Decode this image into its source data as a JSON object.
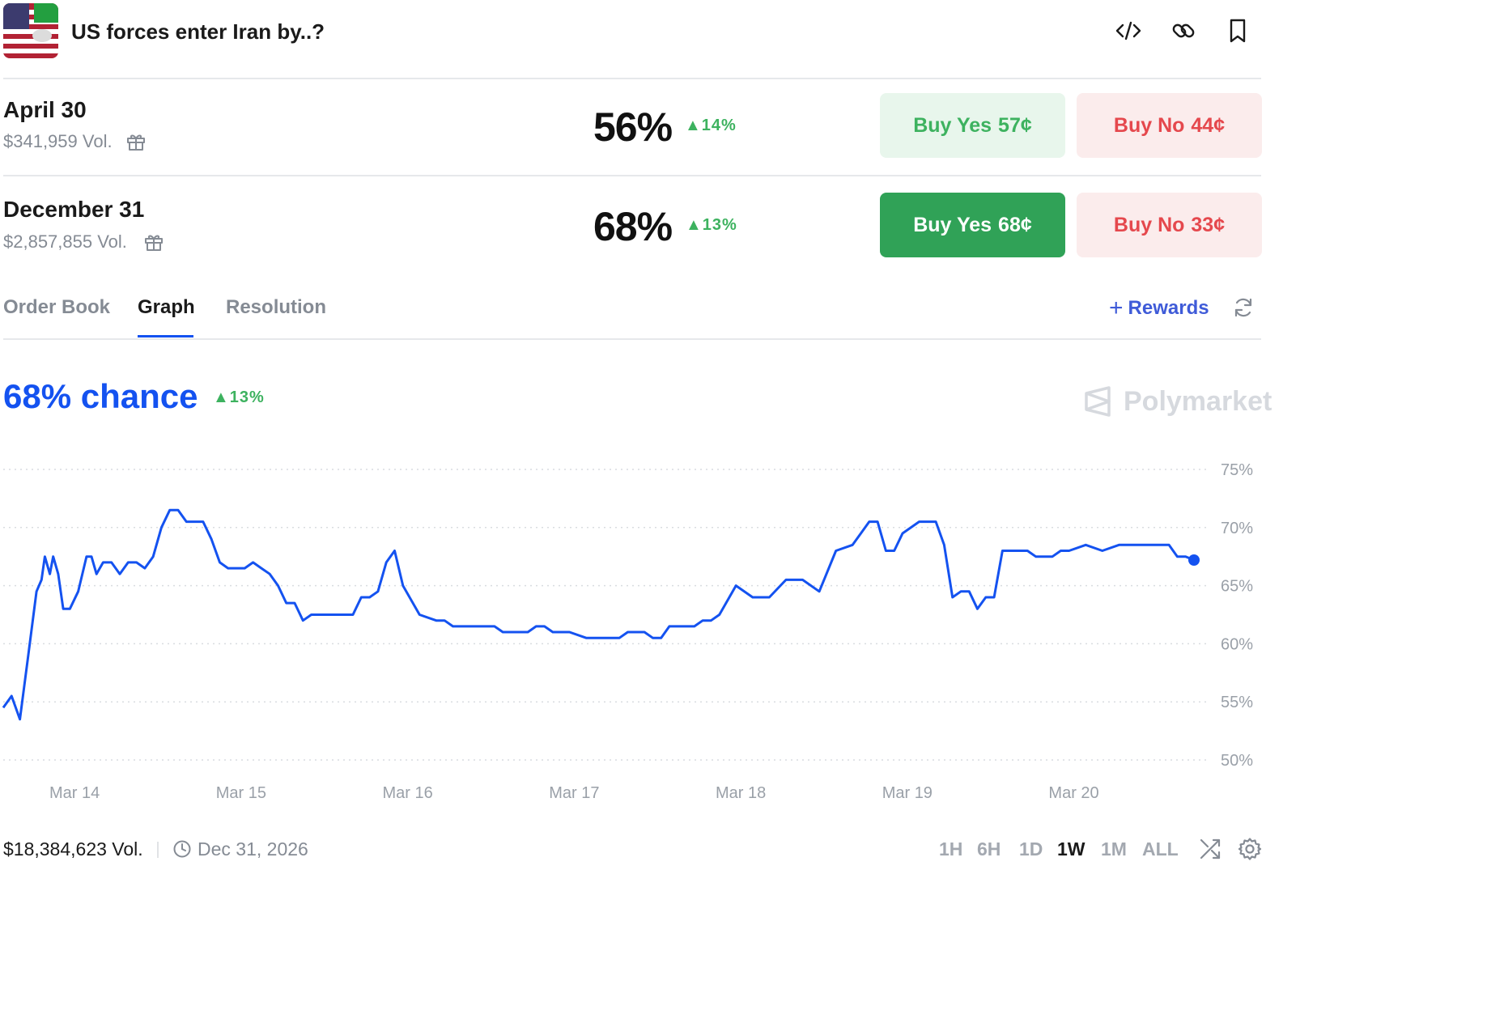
{
  "header": {
    "title": "US forces enter Iran by..?",
    "icons": [
      "code-icon",
      "link-icon",
      "bookmark-icon"
    ]
  },
  "outcomes": [
    {
      "name": "April 30",
      "volume": "$341,959 Vol.",
      "percent": "56%",
      "change": "14%",
      "buy_yes_label": "Buy Yes",
      "buy_yes_price": "57¢",
      "buy_no_label": "Buy No",
      "buy_no_price": "44¢"
    },
    {
      "name": "December 31",
      "volume": "$2,857,855 Vol.",
      "percent": "68%",
      "change": "13%",
      "buy_yes_label": "Buy Yes",
      "buy_yes_price": "68¢",
      "buy_no_label": "Buy No",
      "buy_no_price": "33¢"
    }
  ],
  "tabs": {
    "items": [
      "Order Book",
      "Graph",
      "Resolution"
    ],
    "active": "Graph",
    "rewards_label": "Rewards"
  },
  "summary": {
    "chance": "68% chance",
    "change": "13%",
    "brand": "Polymarket"
  },
  "colors": {
    "line": "#1452f0",
    "green": "#3db25f",
    "red": "#e5484d"
  },
  "chart_data": {
    "type": "line",
    "title": "",
    "xlabel": "",
    "ylabel": "",
    "x_ticks": [
      "Mar 14",
      "Mar 15",
      "Mar 16",
      "Mar 17",
      "Mar 18",
      "Mar 19",
      "Mar 20"
    ],
    "y_ticks": [
      "75%",
      "70%",
      "65%",
      "60%",
      "55%",
      "50%"
    ],
    "ylim": [
      50,
      75
    ],
    "xlim_days": [
      13.8,
      20.95
    ],
    "grid": true,
    "series": [
      {
        "name": "",
        "x": [
          13.8,
          13.85,
          13.9,
          13.95,
          14.0,
          14.03,
          14.05,
          14.08,
          14.1,
          14.13,
          14.16,
          14.2,
          14.25,
          14.3,
          14.33,
          14.36,
          14.4,
          14.45,
          14.5,
          14.55,
          14.6,
          14.65,
          14.7,
          14.75,
          14.8,
          14.85,
          14.9,
          14.95,
          15.0,
          15.05,
          15.1,
          15.15,
          15.2,
          15.25,
          15.3,
          15.35,
          15.4,
          15.45,
          15.5,
          15.55,
          15.6,
          15.65,
          15.7,
          15.75,
          15.8,
          15.85,
          15.9,
          15.95,
          16.0,
          16.05,
          16.1,
          16.15,
          16.2,
          16.3,
          16.4,
          16.45,
          16.5,
          16.6,
          16.65,
          16.7,
          16.75,
          16.8,
          16.85,
          16.9,
          16.95,
          17.0,
          17.05,
          17.1,
          17.15,
          17.2,
          17.3,
          17.4,
          17.5,
          17.55,
          17.6,
          17.65,
          17.7,
          17.75,
          17.8,
          17.85,
          17.9,
          17.95,
          18.0,
          18.05,
          18.1,
          18.2,
          18.3,
          18.4,
          18.5,
          18.6,
          18.7,
          18.8,
          18.9,
          18.95,
          19.0,
          19.05,
          19.1,
          19.15,
          19.2,
          19.3,
          19.35,
          19.4,
          19.45,
          19.5,
          19.55,
          19.6,
          19.65,
          19.7,
          19.75,
          19.8,
          19.85,
          19.9,
          19.95,
          20.0,
          20.05,
          20.1,
          20.15,
          20.2,
          20.3,
          20.4,
          20.5,
          20.6,
          20.7,
          20.8,
          20.85,
          20.9,
          20.95
        ],
        "values": [
          54.5,
          55.5,
          53.5,
          59,
          64.5,
          65.5,
          67.5,
          66,
          67.5,
          66,
          63,
          63,
          64.5,
          67.5,
          67.5,
          66,
          67,
          67,
          66,
          67,
          67,
          66.5,
          67.5,
          70,
          71.5,
          71.5,
          70.5,
          70.5,
          70.5,
          69,
          67,
          66.5,
          66.5,
          66.5,
          67,
          66.5,
          66,
          65,
          63.5,
          63.5,
          62,
          62.5,
          62.5,
          62.5,
          62.5,
          62.5,
          62.5,
          64,
          64,
          64.5,
          67,
          68,
          65,
          62.5,
          62,
          62,
          61.5,
          61.5,
          61.5,
          61.5,
          61.5,
          61,
          61,
          61,
          61,
          61.5,
          61.5,
          61,
          61,
          61,
          60.5,
          60.5,
          60.5,
          61,
          61,
          61,
          60.5,
          60.5,
          61.5,
          61.5,
          61.5,
          61.5,
          62,
          62,
          62.5,
          65,
          64,
          64,
          65.5,
          65.5,
          64.5,
          68,
          68.5,
          69.5,
          70.5,
          70.5,
          68,
          68,
          69.5,
          70.5,
          70.5,
          70.5,
          68.5,
          64,
          64.5,
          64.5,
          63,
          64,
          64,
          68,
          68,
          68,
          68,
          67.5,
          67.5,
          67.5,
          68,
          68,
          68.5,
          68,
          68.5,
          68.5,
          68.5,
          68.5,
          67.5,
          67.5,
          67.2
        ]
      }
    ]
  },
  "footer": {
    "volume": "$18,384,623 Vol.",
    "date": "Dec 31, 2026",
    "ranges": [
      "1H",
      "6H",
      "1D",
      "1W",
      "1M",
      "ALL"
    ],
    "active_range": "1W"
  }
}
